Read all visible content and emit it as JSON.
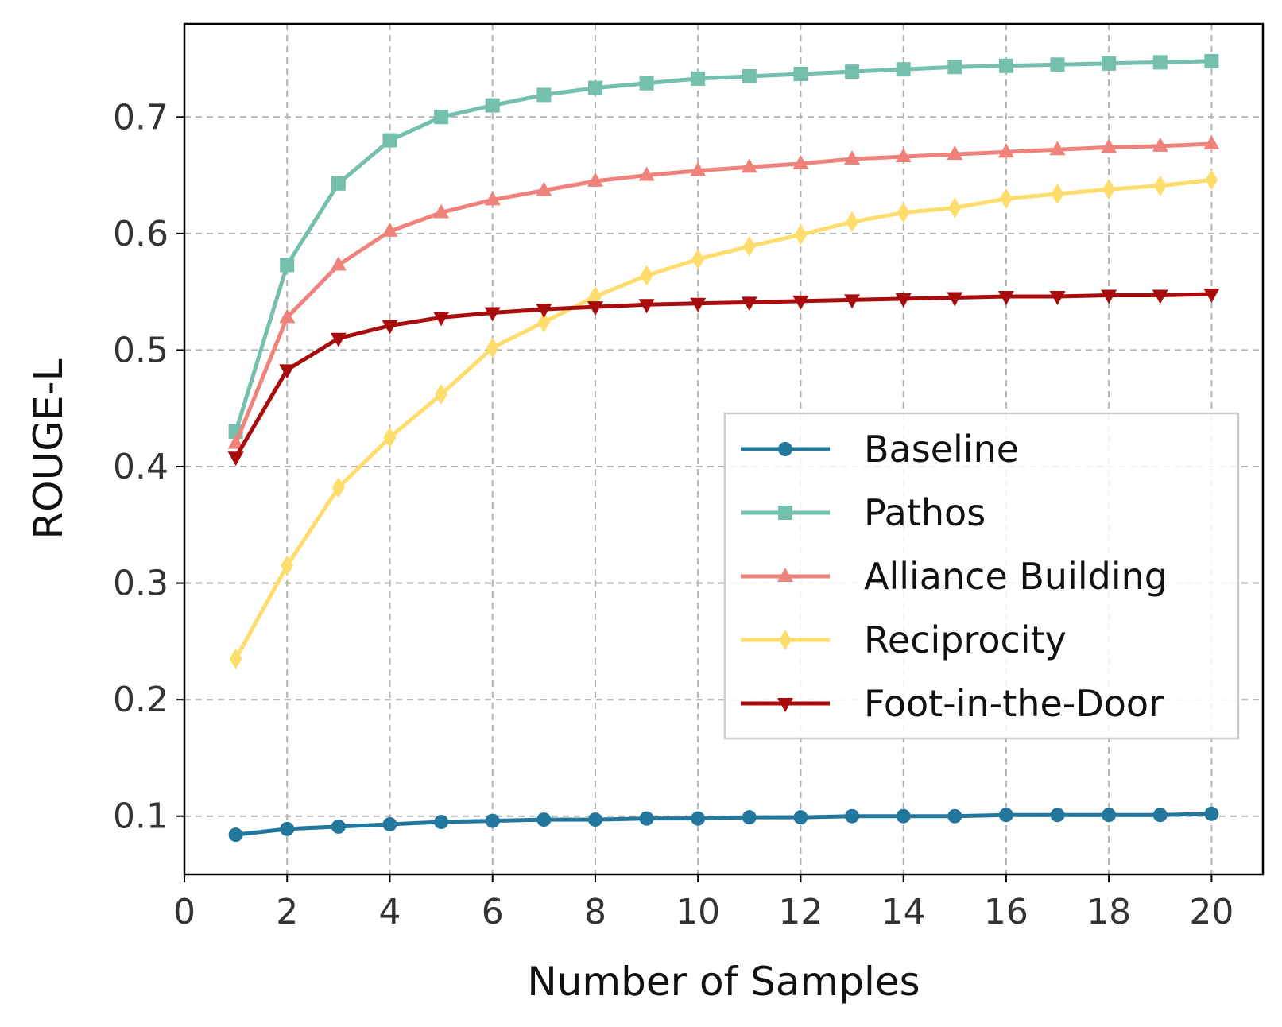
{
  "chart_data": {
    "type": "line",
    "xlabel": "Number of Samples",
    "ylabel": "ROUGE-L",
    "xlim": [
      0,
      21
    ],
    "ylim": [
      0.05,
      0.78
    ],
    "xticks": [
      0,
      2,
      4,
      6,
      8,
      10,
      12,
      14,
      16,
      18,
      20
    ],
    "xtick_labels": [
      "0",
      "2",
      "4",
      "6",
      "8",
      "10",
      "12",
      "14",
      "16",
      "18",
      "20"
    ],
    "yticks": [
      0.1,
      0.2,
      0.3,
      0.4,
      0.5,
      0.6,
      0.7
    ],
    "ytick_labels": [
      "0.1",
      "0.2",
      "0.3",
      "0.4",
      "0.5",
      "0.6",
      "0.7"
    ],
    "grid": true,
    "legend_position": "center-right",
    "x": [
      1,
      2,
      3,
      4,
      5,
      6,
      7,
      8,
      9,
      10,
      11,
      12,
      13,
      14,
      15,
      16,
      17,
      18,
      19,
      20
    ],
    "series": [
      {
        "name": "Baseline",
        "color": "#23769c",
        "marker": "circle",
        "values": [
          0.084,
          0.089,
          0.091,
          0.093,
          0.095,
          0.096,
          0.097,
          0.097,
          0.098,
          0.098,
          0.099,
          0.099,
          0.1,
          0.1,
          0.1,
          0.101,
          0.101,
          0.101,
          0.101,
          0.102
        ]
      },
      {
        "name": "Pathos",
        "color": "#74bfae",
        "marker": "square",
        "values": [
          0.43,
          0.573,
          0.643,
          0.68,
          0.7,
          0.71,
          0.719,
          0.725,
          0.729,
          0.733,
          0.735,
          0.737,
          0.739,
          0.741,
          0.743,
          0.744,
          0.745,
          0.746,
          0.747,
          0.748
        ]
      },
      {
        "name": "Alliance Building",
        "color": "#ef837b",
        "marker": "triangle-up",
        "values": [
          0.42,
          0.528,
          0.573,
          0.602,
          0.618,
          0.629,
          0.637,
          0.645,
          0.65,
          0.654,
          0.657,
          0.66,
          0.664,
          0.666,
          0.668,
          0.67,
          0.672,
          0.674,
          0.675,
          0.677
        ]
      },
      {
        "name": "Reciprocity",
        "color": "#ffdd6c",
        "marker": "thin-diamond",
        "values": [
          0.235,
          0.315,
          0.382,
          0.425,
          0.462,
          0.502,
          0.524,
          0.546,
          0.564,
          0.578,
          0.589,
          0.599,
          0.61,
          0.618,
          0.622,
          0.63,
          0.634,
          0.638,
          0.641,
          0.646
        ]
      },
      {
        "name": "Foot-in-the-Door",
        "color": "#a80c0c",
        "marker": "triangle-down",
        "values": [
          0.408,
          0.483,
          0.51,
          0.521,
          0.528,
          0.532,
          0.535,
          0.537,
          0.539,
          0.54,
          0.541,
          0.542,
          0.543,
          0.544,
          0.545,
          0.546,
          0.546,
          0.547,
          0.547,
          0.548
        ]
      }
    ]
  }
}
